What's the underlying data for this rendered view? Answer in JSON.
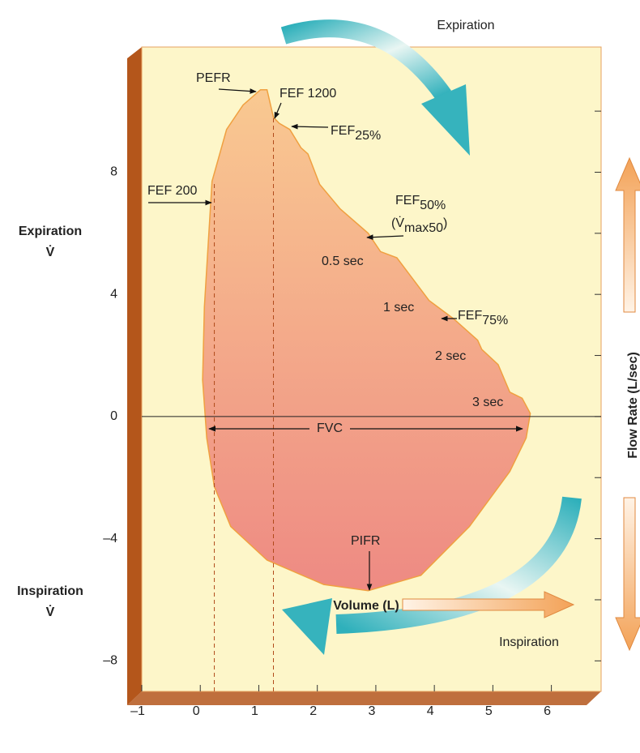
{
  "chart_data": {
    "type": "area",
    "x": [
      0.24,
      0.11,
      0.04,
      0.07,
      0.2,
      0.45,
      0.73,
      1.03,
      1.14,
      1.25,
      1.35,
      1.53,
      1.72,
      1.84,
      2.04,
      2.39,
      2.87,
      3.08,
      3.36,
      3.91,
      3.98,
      4.33,
      4.74,
      4.81,
      5.09,
      5.29,
      5.5,
      5.64,
      5.57,
      5.29,
      4.6,
      3.77,
      2.87,
      2.11,
      1.14,
      0.52
    ],
    "values": [
      -2.3,
      -0.7,
      1.2,
      3.6,
      7.7,
      9.4,
      10.2,
      10.7,
      10.7,
      9.8,
      9.6,
      9.4,
      8.8,
      8.6,
      7.6,
      6.8,
      6.0,
      5.4,
      5.2,
      3.8,
      3.7,
      3.2,
      2.5,
      2.2,
      1.7,
      0.8,
      0.6,
      0.1,
      -0.7,
      -1.8,
      -3.6,
      -5.2,
      -5.7,
      -5.5,
      -4.7,
      -3.6
    ],
    "xlim": [
      -1,
      6.85
    ],
    "ylim": [
      -9,
      12.1
    ],
    "xticks": [
      {
        "value": -1,
        "label": "–1"
      },
      0,
      1,
      2,
      3,
      4,
      5,
      6
    ],
    "yticks": [
      {
        "value": -8,
        "label": "–8"
      },
      {
        "value": -4,
        "label": "–4"
      },
      0,
      4,
      8
    ],
    "yminor_ticks": [
      -6,
      -2,
      2,
      6,
      10
    ],
    "zero_line": true,
    "dashed_lines": [
      {
        "x": 0.24,
        "y": 7.7
      },
      {
        "x": 1.25,
        "y": 9.8
      }
    ],
    "gradient_colors": [
      "#f9c991",
      "#ee8a83"
    ],
    "line_color": "#f0a040",
    "plot_background": "#fdf6c9",
    "frame_color": "#b4561b",
    "xlabel": "Volume (L)",
    "ylabel": "Flow Rate (L/sec)",
    "expiration_side_label": "Expiration",
    "inspiration_side_label": "Inspiration",
    "flow_symbol": "V̇",
    "expiration_arrow_label": "Expiration",
    "inspiration_arrow_label": "Inspiration",
    "fvc_label": "FVC",
    "annotations": [
      {
        "text": "PEFR"
      },
      {
        "text": "FEF 1200"
      },
      {
        "text": "FEF",
        "sub": "25%"
      },
      {
        "text": "FEF 200"
      },
      {
        "text": "FEF",
        "sub": "50%"
      },
      {
        "text": "(V̇",
        "sub": "max50",
        "after": ")"
      },
      {
        "text": "0.5 sec"
      },
      {
        "text": "1 sec"
      },
      {
        "text": "FEF",
        "sub": "75%"
      },
      {
        "text": "2 sec"
      },
      {
        "text": "3 sec"
      },
      {
        "text": "PIFR"
      }
    ]
  }
}
